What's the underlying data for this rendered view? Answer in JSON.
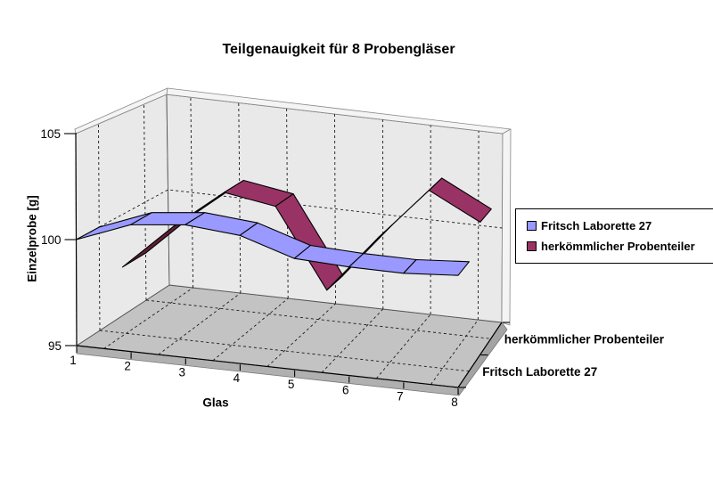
{
  "title": "Teilgenauigkeit für 8 Probengläser",
  "chart_data": {
    "type": "line3d",
    "title": "Teilgenauigkeit für 8 Probengläser",
    "xlabel": "Glas",
    "ylabel": "Einzelprobe [g]",
    "ylim": [
      95,
      105
    ],
    "yticks": [
      "95",
      "100",
      "105"
    ],
    "categories": [
      "1",
      "2",
      "3",
      "4",
      "5",
      "6",
      "7",
      "8"
    ],
    "series": [
      {
        "name": "Fritsch Laborette 27",
        "color": "#9999ff",
        "underside_color": "#5757c8",
        "values": [
          100.0,
          101.0,
          101.3,
          101.1,
          100.3,
          100.2,
          100.2,
          100.4
        ]
      },
      {
        "name": "herkömmlicher Probenteiler",
        "color": "#993366",
        "underside_color": "#5c1f35",
        "values": [
          97.4,
          99.7,
          101.7,
          101.3,
          97.4,
          100.3,
          103.0,
          101.7
        ]
      }
    ],
    "depth_axis_labels": [
      "Fritsch Laborette 27",
      "herkömmlicher Probenteiler"
    ],
    "grid": true,
    "legend_position": "right"
  },
  "legend": {
    "items": [
      {
        "label": "Fritsch Laborette 27"
      },
      {
        "label": "herkömmlicher Probenteiler"
      }
    ]
  }
}
